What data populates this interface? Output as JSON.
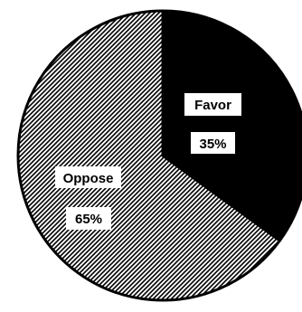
{
  "chart_data": {
    "type": "pie",
    "slices": [
      {
        "label": "Favor",
        "value": 35,
        "value_label": "35%",
        "style": "solid",
        "color": "#000000"
      },
      {
        "label": "Oppose",
        "value": 65,
        "value_label": "65%",
        "style": "hatched",
        "color": "#000000"
      }
    ],
    "title": "",
    "legend": "none",
    "start": "top",
    "direction": "clockwise"
  }
}
